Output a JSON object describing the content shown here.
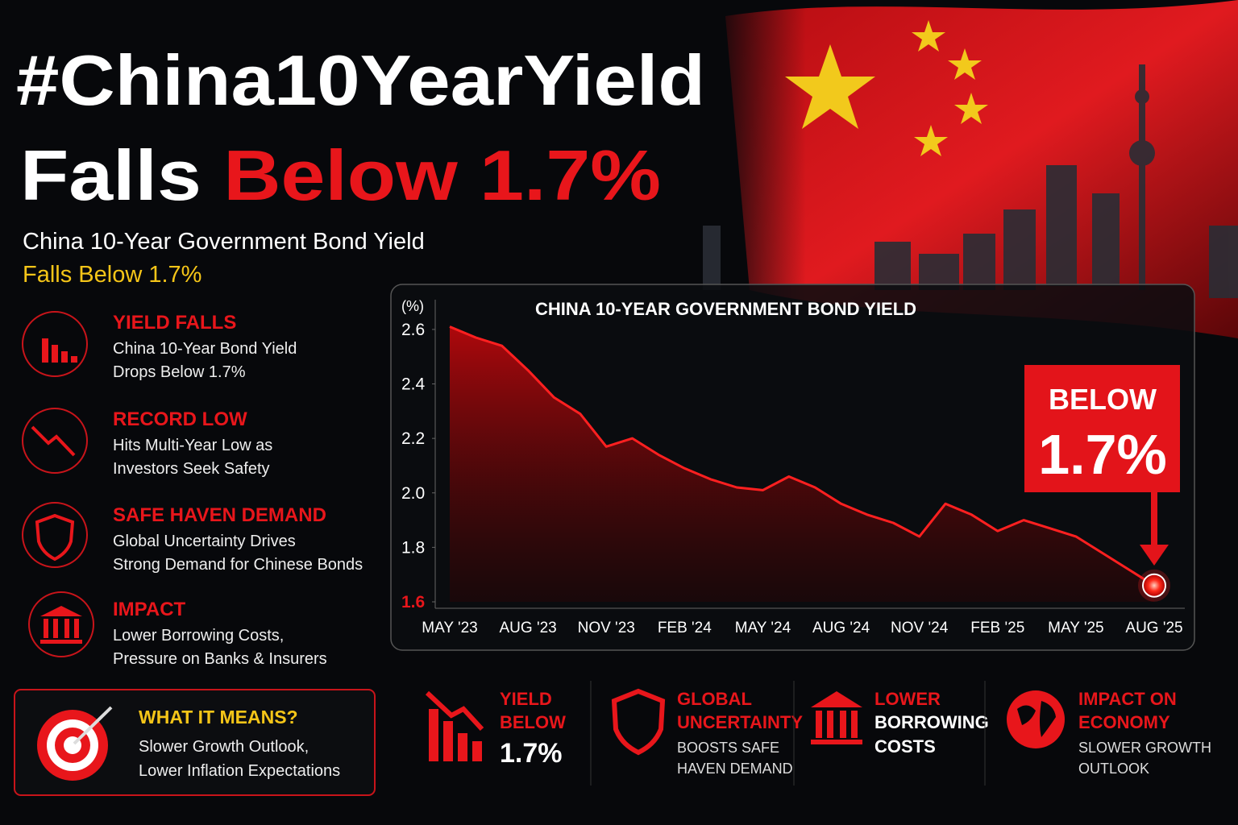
{
  "header": {
    "title": "#China10YearYield",
    "title_line2_white": "Falls",
    "title_line2_red": "Below 1.7%",
    "subtitle": "China 10-Year Government Bond Yield",
    "subtitle_highlight": "Falls Below 1.7%"
  },
  "highlights": [
    {
      "title": "YIELD FALLS",
      "lines": [
        "China 10-Year Bond Yield",
        "Drops Below 1.7%"
      ]
    },
    {
      "title": "RECORD LOW",
      "lines": [
        "Hits Multi-Year Low as",
        "Investors Seek Safety"
      ]
    },
    {
      "title": "SAFE HAVEN DEMAND",
      "lines": [
        "Global Uncertainty Drives",
        "Strong Demand for Chinese Bonds"
      ]
    },
    {
      "title": "IMPACT",
      "lines": [
        "Lower Borrowing Costs,",
        "Pressure on Banks & Insurers"
      ]
    }
  ],
  "what_it_means": {
    "title": "WHAT IT MEANS?",
    "lines": [
      "Slower Growth Outlook,",
      "Lower Inflation Expectations"
    ]
  },
  "bottom_items": [
    {
      "red_lines": [
        "YIELD",
        "BELOW"
      ],
      "white_lines": [
        "1.7%"
      ]
    },
    {
      "red_lines": [
        "GLOBAL",
        "UNCERTAINTY"
      ],
      "white_lines": [
        "BOOSTS SAFE",
        "HAVEN DEMAND"
      ]
    },
    {
      "red_lines": [
        "LOWER"
      ],
      "white_lines": [
        "BORROWING",
        "COSTS"
      ]
    },
    {
      "red_lines": [
        "IMPACT ON",
        "ECONOMY"
      ],
      "white_lines": [
        "SLOWER GROWTH",
        "OUTLOOK"
      ]
    }
  ],
  "chart_data": {
    "type": "line",
    "title": "CHINA 10-YEAR GOVERNMENT BOND YIELD",
    "y_unit": "(%)",
    "categories": [
      "MAY '23",
      null,
      null,
      "AUG '23",
      null,
      null,
      "NOV '23",
      null,
      null,
      "FEB '24",
      null,
      null,
      "MAY '24",
      null,
      null,
      "AUG '24",
      null,
      null,
      "NOV '24",
      null,
      null,
      "FEB '25",
      null,
      null,
      "MAY '25",
      null,
      null,
      "AUG '25"
    ],
    "values": [
      2.61,
      2.57,
      2.54,
      2.45,
      2.35,
      2.29,
      2.17,
      2.2,
      2.14,
      2.09,
      2.05,
      2.02,
      2.01,
      2.06,
      2.02,
      1.96,
      1.92,
      1.89,
      1.84,
      1.96,
      1.92,
      1.86,
      1.9,
      1.87,
      1.84,
      1.78,
      1.72,
      1.66
    ],
    "color": "#ff2020",
    "ylim": [
      1.6,
      2.65
    ],
    "yticks": [
      1.6,
      1.8,
      {
        "value": 2,
        "label": "2.0"
      },
      2.2,
      2.4,
      2.6
    ],
    "annotation": {
      "lines": [
        "BELOW",
        "1.7%"
      ]
    }
  }
}
